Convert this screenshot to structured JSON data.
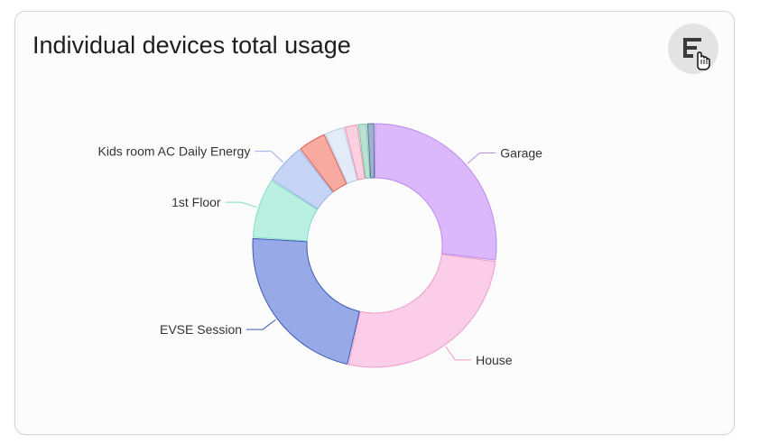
{
  "card": {
    "title": "Individual devices total usage",
    "action_icon": "sort-bars-icon",
    "cursor_icon": "hand-pointer-icon"
  },
  "chart_data": {
    "type": "pie",
    "variant": "donut",
    "title": "",
    "slices": [
      {
        "label": "Garage",
        "value": 27.0,
        "color": "#dbb8fb",
        "stroke": "#b98cf0"
      },
      {
        "label": "House",
        "value": 26.5,
        "color": "#fbcde8",
        "stroke": "#ef9dcc"
      },
      {
        "label": "EVSE Session",
        "value": 22.5,
        "color": "#97a9e6",
        "stroke": "#3c58b3"
      },
      {
        "label": "1st Floor",
        "value": 8.0,
        "color": "#b9f0e1",
        "stroke": "#85dcc4"
      },
      {
        "label": "Kids room AC Daily Energy",
        "value": 5.5,
        "color": "#c6d5f6",
        "stroke": "#98afe6"
      },
      {
        "label": "",
        "value": 3.8,
        "color": "#f8a9a0",
        "stroke": "#d9625c"
      },
      {
        "label": "",
        "value": 2.7,
        "color": "#e3ebf8",
        "stroke": "#b8c8e6"
      },
      {
        "label": "",
        "value": 1.8,
        "color": "#fbd0df",
        "stroke": "#ee93b3"
      },
      {
        "label": "",
        "value": 1.2,
        "color": "#b9e2d2",
        "stroke": "#7cc6a8"
      },
      {
        "label": "",
        "value": 1.0,
        "color": "#9eb3cf",
        "stroke": "#5b7397"
      }
    ],
    "legend": "none"
  }
}
